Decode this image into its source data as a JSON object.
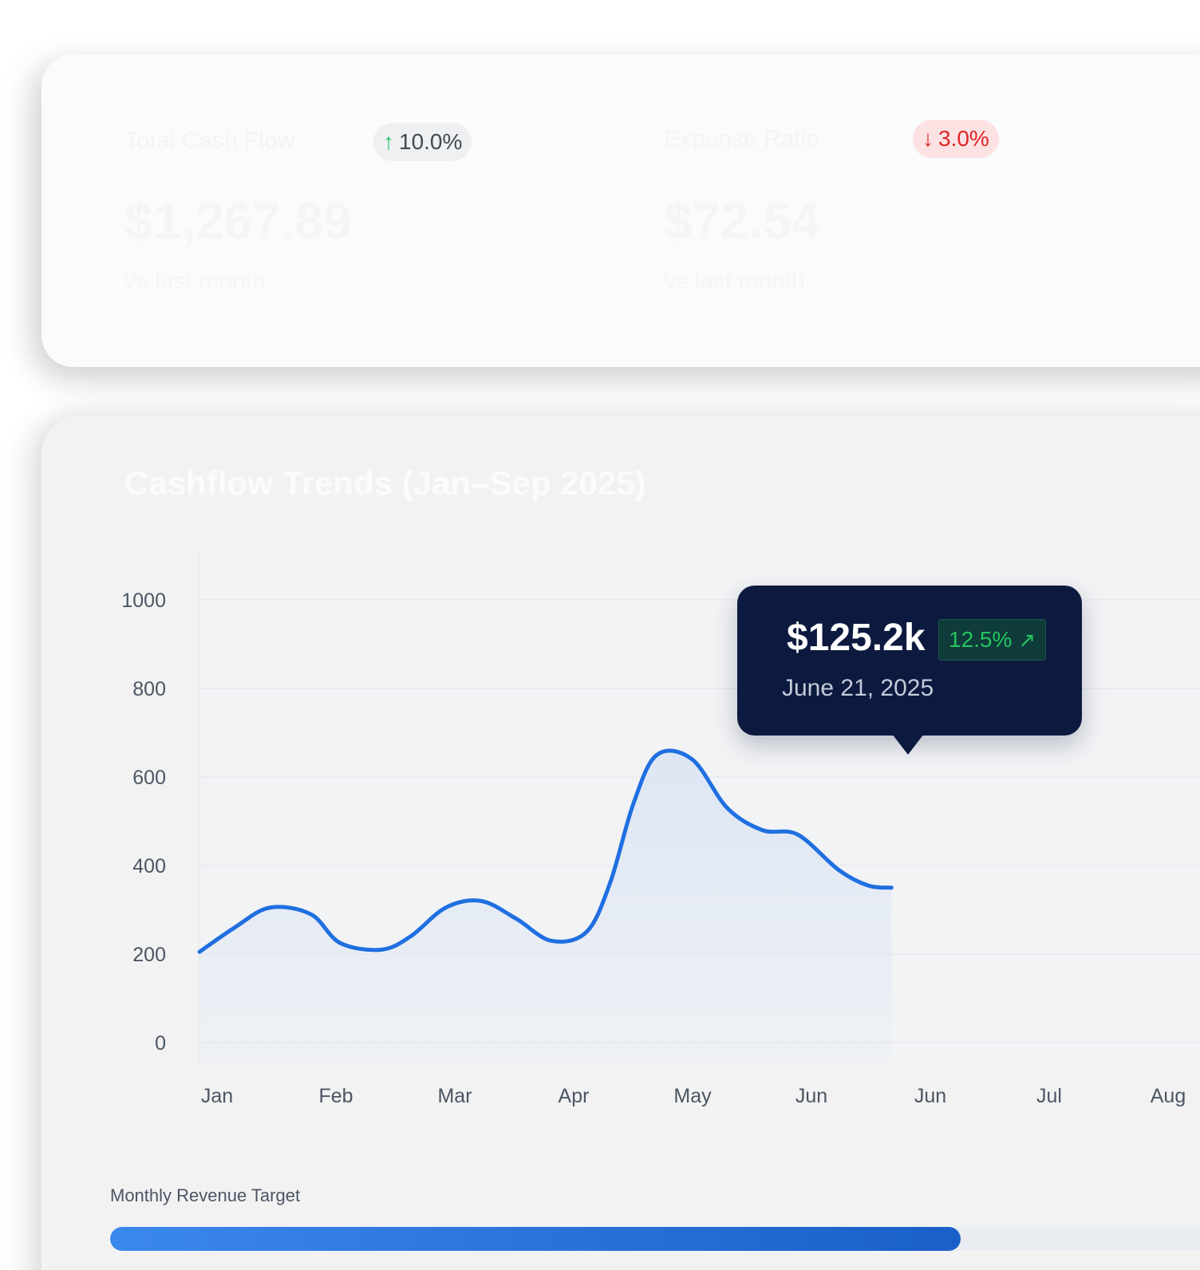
{
  "stats": [
    {
      "label": "Total Cash Flow",
      "change": "10.0%",
      "direction": "up",
      "value": "$1,267.89",
      "sub": "vs last month"
    },
    {
      "label": "Expense Ratio",
      "change": "3.0%",
      "direction": "down",
      "value": "$72.54",
      "sub": "vs last month"
    }
  ],
  "chart_data": {
    "type": "area",
    "title": "Cashflow Trends (Jan–Sep 2025)",
    "categories": [
      "Jan",
      "Feb",
      "Mar",
      "Apr",
      "May",
      "Jun",
      "Jun",
      "Jul",
      "Aug"
    ],
    "y_ticks": [
      0,
      200,
      400,
      600,
      800,
      1000
    ],
    "ylim": [
      0,
      1130
    ],
    "points": [
      {
        "x": 0.0,
        "y": 205
      },
      {
        "x": 0.6,
        "y": 260
      },
      {
        "x": 1.2,
        "y": 305
      },
      {
        "x": 1.9,
        "y": 290
      },
      {
        "x": 2.4,
        "y": 225
      },
      {
        "x": 3.1,
        "y": 210
      },
      {
        "x": 3.6,
        "y": 240
      },
      {
        "x": 4.2,
        "y": 305
      },
      {
        "x": 4.8,
        "y": 320
      },
      {
        "x": 5.4,
        "y": 280
      },
      {
        "x": 6.0,
        "y": 230
      },
      {
        "x": 6.6,
        "y": 250
      },
      {
        "x": 7.0,
        "y": 360
      },
      {
        "x": 7.4,
        "y": 540
      },
      {
        "x": 7.8,
        "y": 650
      },
      {
        "x": 8.4,
        "y": 640
      },
      {
        "x": 9.0,
        "y": 530
      },
      {
        "x": 9.6,
        "y": 480
      },
      {
        "x": 10.2,
        "y": 470
      },
      {
        "x": 10.9,
        "y": 390
      },
      {
        "x": 11.4,
        "y": 355
      },
      {
        "x": 11.8,
        "y": 350
      }
    ],
    "line_color": "#1f6fe0",
    "area_color": "#dde6f4",
    "grid": true,
    "tooltip": {
      "value": "$125.2k",
      "change": "12.5%",
      "icon": "arrow-up-right-icon",
      "date": "June 21, 2025"
    }
  },
  "progress": {
    "label": "Monthly Revenue Target",
    "fraction": 0.74
  }
}
